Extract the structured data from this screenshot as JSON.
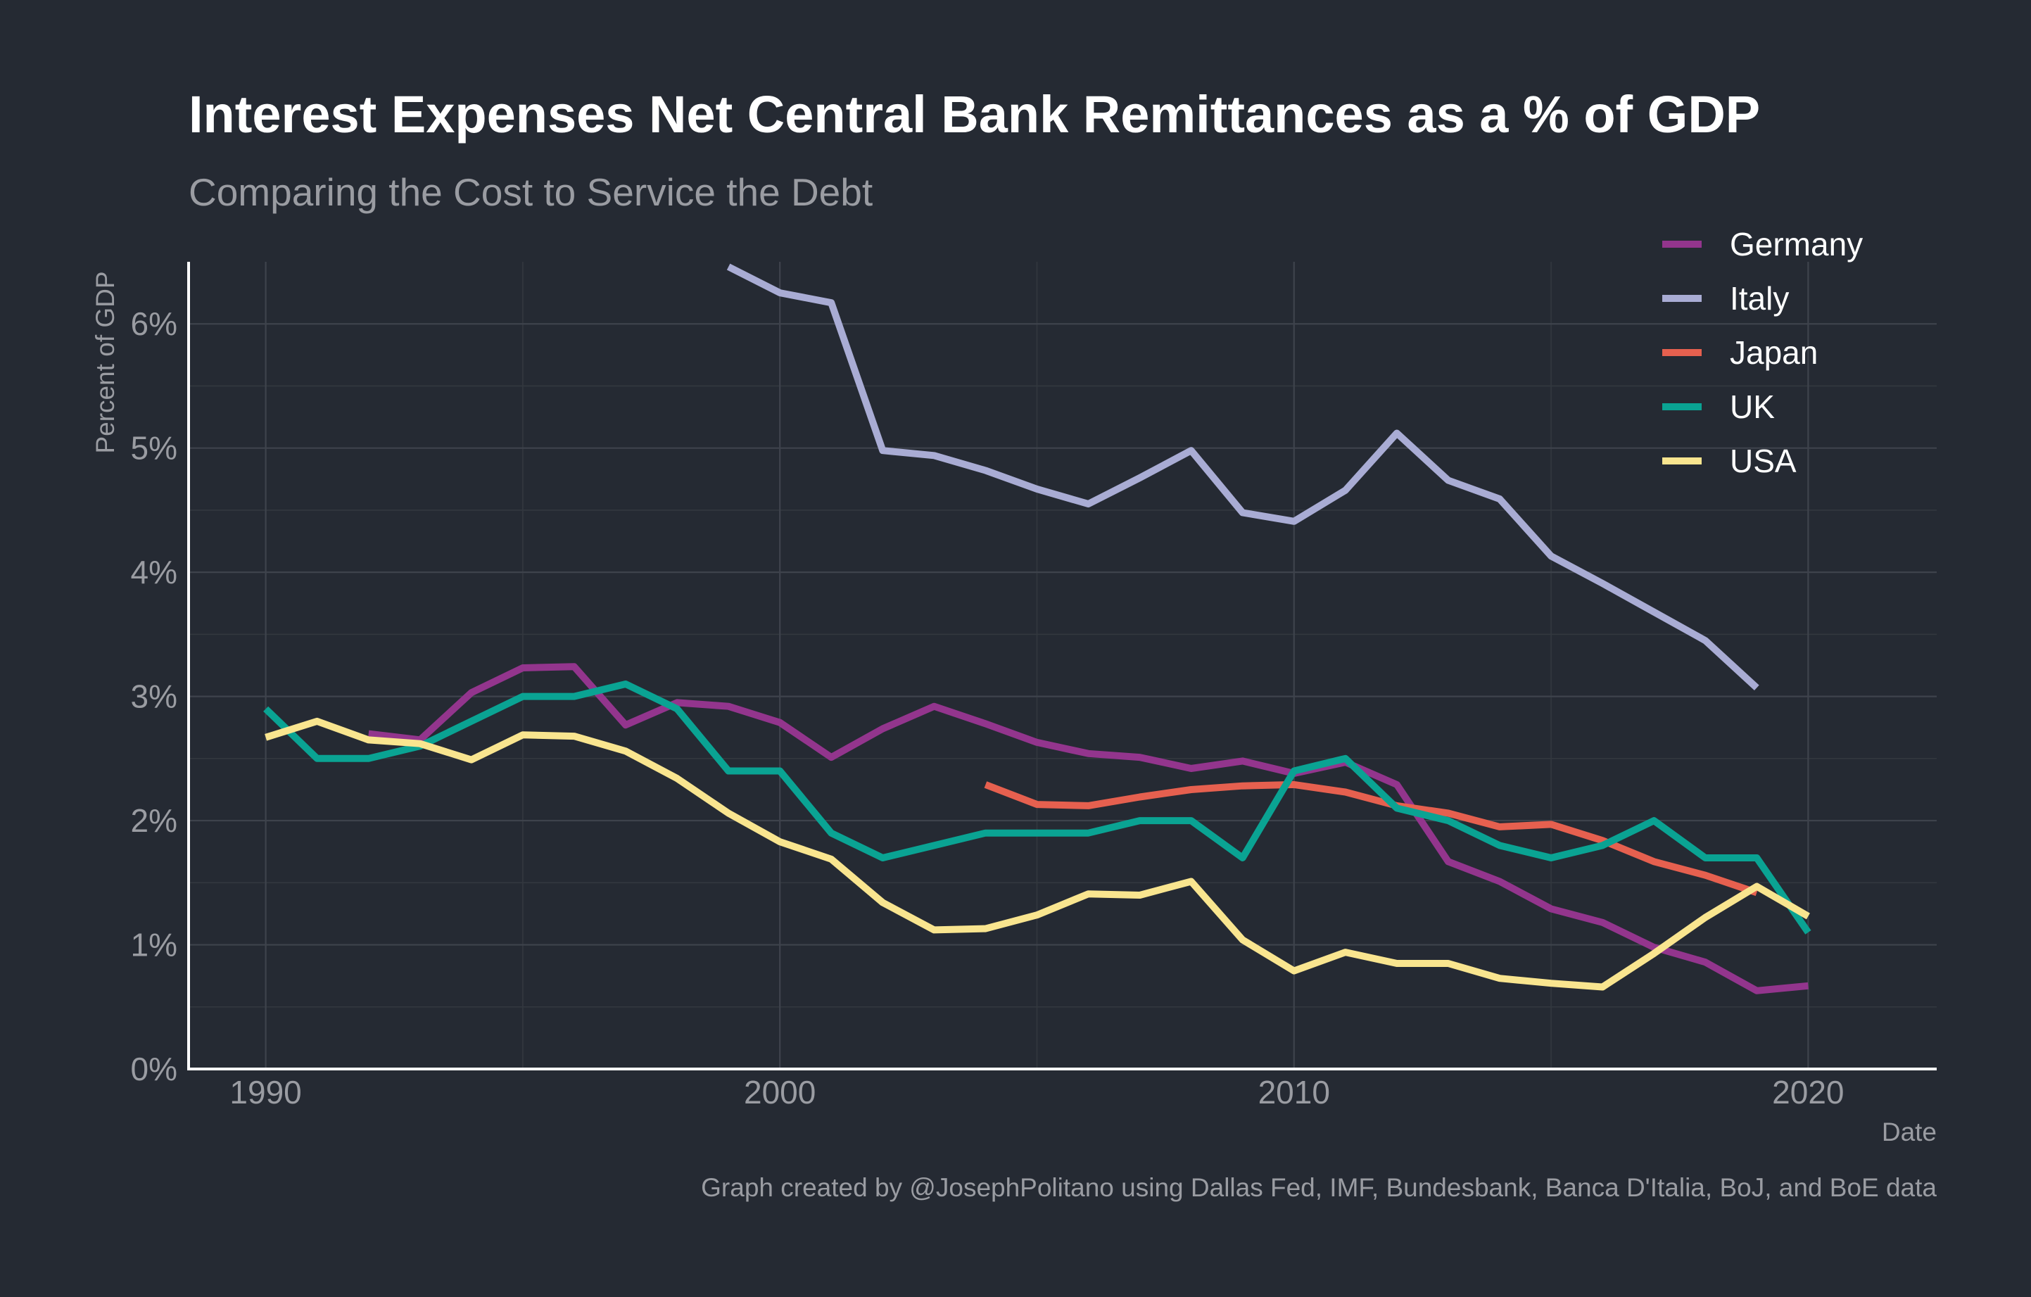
{
  "chart_data": {
    "type": "line",
    "title": "Interest Expenses Net Central Bank Remittances as a % of GDP",
    "subtitle": "Comparing the Cost to Service the Debt",
    "xlabel": "Date",
    "ylabel": "Percent of GDP",
    "caption": "Graph created by @JosephPolitano using Dallas Fed, IMF, Bundesbank, Banca D'Italia, BoJ, and BoE data",
    "xlim": [
      1988.5,
      2022.5
    ],
    "ylim": [
      0,
      6.5
    ],
    "x_ticks": [
      1990,
      2000,
      2010,
      2020
    ],
    "x_tick_labels": [
      "1990",
      "2000",
      "2010",
      "2020"
    ],
    "y_ticks": [
      0,
      1,
      2,
      3,
      4,
      5,
      6
    ],
    "y_tick_labels": [
      "0%",
      "1%",
      "2%",
      "3%",
      "4%",
      "5%",
      "6%"
    ],
    "grid": true,
    "legend_position": "top-right",
    "series": [
      {
        "name": "Germany",
        "color": "#93358d",
        "x": [
          1992,
          1993,
          1994,
          1995,
          1996,
          1997,
          1998,
          1999,
          2000,
          2001,
          2002,
          2003,
          2004,
          2005,
          2006,
          2007,
          2008,
          2009,
          2010,
          2011,
          2012,
          2013,
          2014,
          2015,
          2016,
          2017,
          2018,
          2019,
          2020
        ],
        "values": [
          2.7,
          2.65,
          3.03,
          3.23,
          3.24,
          2.77,
          2.95,
          2.92,
          2.79,
          2.51,
          2.74,
          2.92,
          2.78,
          2.63,
          2.54,
          2.51,
          2.42,
          2.48,
          2.38,
          2.47,
          2.29,
          1.67,
          1.51,
          1.29,
          1.18,
          0.98,
          0.86,
          0.63,
          0.67
        ]
      },
      {
        "name": "Italy",
        "color": "#a9acd4",
        "x": [
          1999,
          2000,
          2001,
          2002,
          2003,
          2004,
          2005,
          2006,
          2007,
          2008,
          2009,
          2010,
          2011,
          2012,
          2013,
          2014,
          2015,
          2016,
          2017,
          2018,
          2019
        ],
        "values": [
          6.46,
          6.25,
          6.17,
          4.98,
          4.94,
          4.82,
          4.67,
          4.55,
          4.76,
          4.98,
          4.48,
          4.41,
          4.66,
          5.12,
          4.74,
          4.59,
          4.13,
          3.91,
          3.68,
          3.45,
          3.07
        ]
      },
      {
        "name": "Japan",
        "color": "#e6604f",
        "x": [
          2004,
          2005,
          2006,
          2007,
          2008,
          2009,
          2010,
          2011,
          2012,
          2013,
          2014,
          2015,
          2016,
          2017,
          2018,
          2019
        ],
        "values": [
          2.29,
          2.13,
          2.12,
          2.19,
          2.25,
          2.28,
          2.29,
          2.23,
          2.12,
          2.06,
          1.95,
          1.97,
          1.84,
          1.67,
          1.56,
          1.42
        ]
      },
      {
        "name": "UK",
        "color": "#0aa393",
        "x": [
          1990,
          1991,
          1992,
          1993,
          1994,
          1995,
          1996,
          1997,
          1998,
          1999,
          2000,
          2001,
          2002,
          2003,
          2004,
          2005,
          2006,
          2007,
          2008,
          2009,
          2010,
          2011,
          2012,
          2013,
          2014,
          2015,
          2016,
          2017,
          2018,
          2019,
          2020
        ],
        "values": [
          2.9,
          2.5,
          2.5,
          2.6,
          2.8,
          3.0,
          3.0,
          3.1,
          2.9,
          2.4,
          2.4,
          1.9,
          1.7,
          1.8,
          1.9,
          1.9,
          1.9,
          2.0,
          2.0,
          1.7,
          2.4,
          2.5,
          2.1,
          2.0,
          1.8,
          1.7,
          1.8,
          2.0,
          1.7,
          1.7,
          1.1
        ]
      },
      {
        "name": "USA",
        "color": "#f9e58f",
        "x": [
          1990,
          1991,
          1992,
          1993,
          1994,
          1995,
          1996,
          1997,
          1998,
          1999,
          2000,
          2001,
          2002,
          2003,
          2004,
          2005,
          2006,
          2007,
          2008,
          2009,
          2010,
          2011,
          2012,
          2013,
          2014,
          2015,
          2016,
          2017,
          2018,
          2019,
          2020
        ],
        "values": [
          2.67,
          2.8,
          2.65,
          2.62,
          2.49,
          2.69,
          2.68,
          2.56,
          2.34,
          2.06,
          1.83,
          1.69,
          1.34,
          1.12,
          1.13,
          1.24,
          1.41,
          1.4,
          1.51,
          1.04,
          0.79,
          0.94,
          0.85,
          0.85,
          0.73,
          0.69,
          0.66,
          0.93,
          1.22,
          1.47,
          1.23
        ]
      }
    ]
  }
}
